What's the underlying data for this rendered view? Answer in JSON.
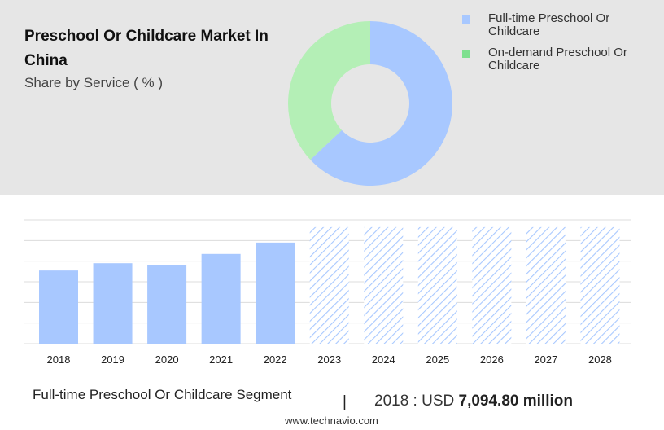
{
  "header": {
    "title": "Preschool Or Childcare Market In China",
    "subtitle": "Share by Service ( % )"
  },
  "legend": [
    {
      "label": "Full-time Preschool Or Childcare",
      "color": "#a8c8ff"
    },
    {
      "label": "On-demand Preschool Or Childcare",
      "color": "#7ee08f"
    }
  ],
  "chart_data": [
    {
      "type": "pie",
      "subtype": "donut",
      "title": "Share by Service ( % )",
      "series": [
        {
          "name": "Full-time Preschool Or Childcare",
          "value": 63,
          "color": "#a8c8ff"
        },
        {
          "name": "On-demand Preschool Or Childcare",
          "value": 37,
          "color": "#b4efb6"
        }
      ]
    },
    {
      "type": "bar",
      "categories": [
        "2018",
        "2019",
        "2020",
        "2021",
        "2022",
        "2023",
        "2024",
        "2025",
        "2026",
        "2027",
        "2028"
      ],
      "values": [
        7094.8,
        7800,
        7600,
        8700,
        9800,
        11300,
        11300,
        11300,
        11300,
        11300,
        11300
      ],
      "forecast_from": "2023",
      "bar_color": "#a8c8ff",
      "forecast_pattern": "hatched",
      "ylim": [
        0,
        12000
      ],
      "grid": true
    }
  ],
  "footer": {
    "segment_label": "Full-time Preschool Or Childcare Segment",
    "divider": "|",
    "year_prefix": "2018 : USD",
    "amount": "7,094.80 million",
    "source": "www.technavio.com"
  }
}
